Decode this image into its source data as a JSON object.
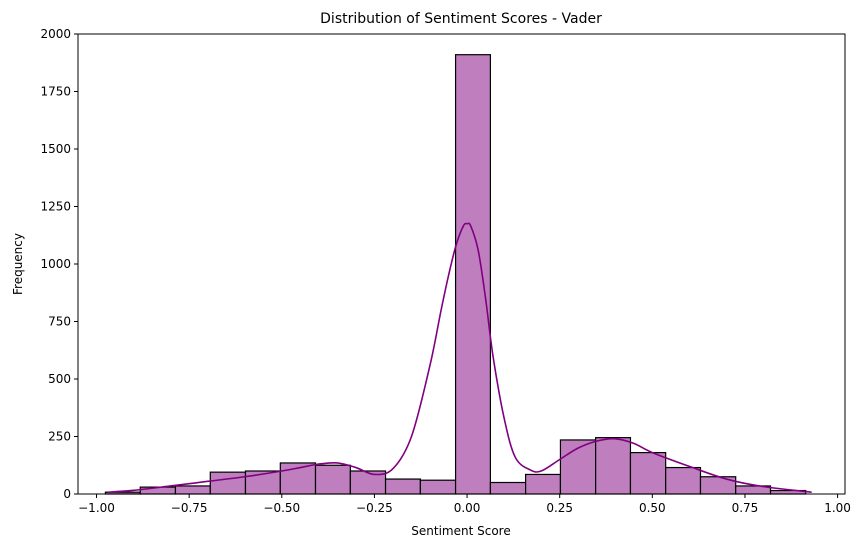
{
  "chart_data": {
    "type": "bar",
    "title": "Distribution of Sentiment Scores - Vader",
    "xlabel": "Sentiment Score",
    "ylabel": "Frequency",
    "xlim": [
      -1.05,
      1.02
    ],
    "ylim": [
      0,
      2000
    ],
    "grid": false,
    "legend": "none",
    "bar_color": "#bf7fbf",
    "edge_color": "#000000",
    "kde_color": "#800080",
    "x_ticks": [
      -1.0,
      -0.75,
      -0.5,
      -0.25,
      0.0,
      0.25,
      0.5,
      0.75,
      1.0
    ],
    "x_tick_labels": [
      "−1.00",
      "−0.75",
      "−0.50",
      "−0.25",
      "0.00",
      "0.25",
      "0.50",
      "0.75",
      "1.00"
    ],
    "y_ticks": [
      0,
      250,
      500,
      750,
      1000,
      1250,
      1500,
      1750,
      2000
    ],
    "y_tick_labels": [
      "0",
      "250",
      "500",
      "750",
      "1000",
      "1250",
      "1500",
      "1750",
      "2000"
    ],
    "bins": {
      "edges": [
        -0.976,
        -0.882,
        -0.787,
        -0.693,
        -0.598,
        -0.504,
        -0.409,
        -0.315,
        -0.22,
        -0.126,
        -0.031,
        0.063,
        0.158,
        0.252,
        0.347,
        0.441,
        0.536,
        0.63,
        0.725,
        0.819,
        0.914
      ],
      "counts": [
        8,
        30,
        35,
        95,
        100,
        135,
        125,
        100,
        65,
        60,
        1910,
        50,
        85,
        235,
        245,
        180,
        115,
        75,
        35,
        15
      ]
    },
    "kde": {
      "x": [
        -0.97,
        -0.9,
        -0.8,
        -0.7,
        -0.6,
        -0.5,
        -0.45,
        -0.4,
        -0.35,
        -0.3,
        -0.25,
        -0.2,
        -0.15,
        -0.1,
        -0.07,
        -0.05,
        -0.03,
        -0.01,
        0.0,
        0.01,
        0.03,
        0.05,
        0.07,
        0.1,
        0.13,
        0.17,
        0.2,
        0.25,
        0.3,
        0.35,
        0.4,
        0.45,
        0.5,
        0.6,
        0.7,
        0.8,
        0.93
      ],
      "y": [
        8,
        16,
        35,
        55,
        75,
        100,
        115,
        130,
        135,
        115,
        85,
        110,
        250,
        560,
        800,
        950,
        1080,
        1165,
        1175,
        1165,
        1060,
        850,
        600,
        330,
        160,
        105,
        100,
        150,
        200,
        230,
        240,
        220,
        180,
        120,
        65,
        32,
        8
      ]
    }
  }
}
